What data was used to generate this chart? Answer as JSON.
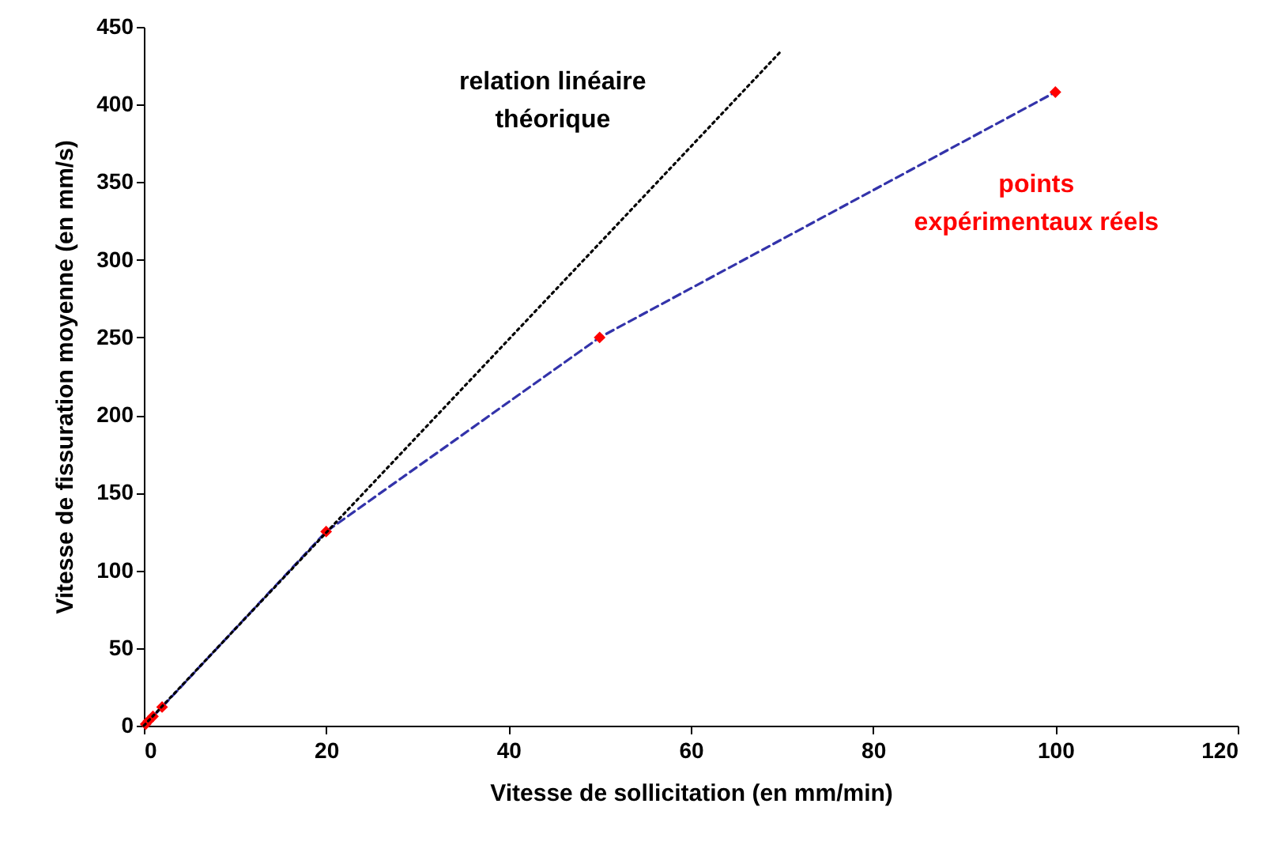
{
  "chart_data": {
    "type": "scatter",
    "xlabel": "Vitesse de sollicitation (en mm/min)",
    "ylabel": "Vitesse de fissuration moyenne (en mm/s)",
    "xlim": [
      0,
      120
    ],
    "xticks": [
      0,
      20,
      40,
      60,
      80,
      100,
      120
    ],
    "ylim": [
      0,
      450
    ],
    "yticks": [
      0,
      50,
      100,
      150,
      200,
      250,
      300,
      350,
      400,
      450
    ],
    "series": [
      {
        "type": "line",
        "color": "#3333aa",
        "line_style": "dashed",
        "marker": "none",
        "x": [
          0.2,
          0.5,
          1,
          2,
          20,
          50,
          100
        ],
        "values": [
          1,
          3,
          6,
          12,
          125,
          250,
          408
        ]
      },
      {
        "name": "points\nexpérimentaux réels",
        "color": "#ff0000",
        "marker": "diamond",
        "x": [
          0.2,
          0.5,
          1,
          2,
          20,
          50,
          100
        ],
        "values": [
          1,
          3,
          6,
          12,
          125,
          250,
          408
        ]
      },
      {
        "type": "line",
        "name": "relation linéaire\nthéorique",
        "color": "#000000",
        "line_style": "dotted",
        "marker": "none",
        "x": [
          0,
          70
        ],
        "values": [
          0,
          435
        ]
      }
    ]
  }
}
